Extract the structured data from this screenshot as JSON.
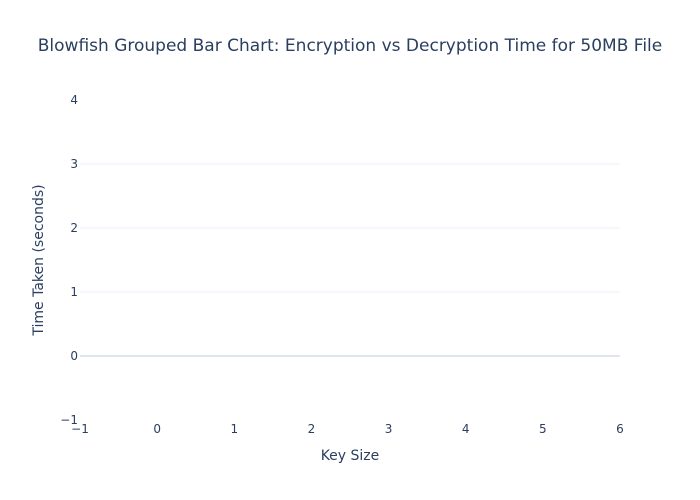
{
  "chart_data": {
    "type": "bar",
    "title": "Blowfish Grouped Bar Chart: Encryption vs Decryption Time for 50MB File",
    "xlabel": "Key Size",
    "ylabel": "Time Taken (seconds)",
    "xlim": [
      -1,
      6
    ],
    "ylim": [
      -1,
      4
    ],
    "x_ticks": [
      "−1",
      "0",
      "1",
      "2",
      "3",
      "4",
      "5",
      "6"
    ],
    "y_ticks": [
      "−1",
      "0",
      "1",
      "2",
      "3",
      "4"
    ],
    "series": [],
    "grid": true,
    "colors": {
      "text": "#2a3f5f",
      "grid": "#ebf0f8",
      "zeroline": "#e1e5ee",
      "background": "#ffffff"
    }
  }
}
